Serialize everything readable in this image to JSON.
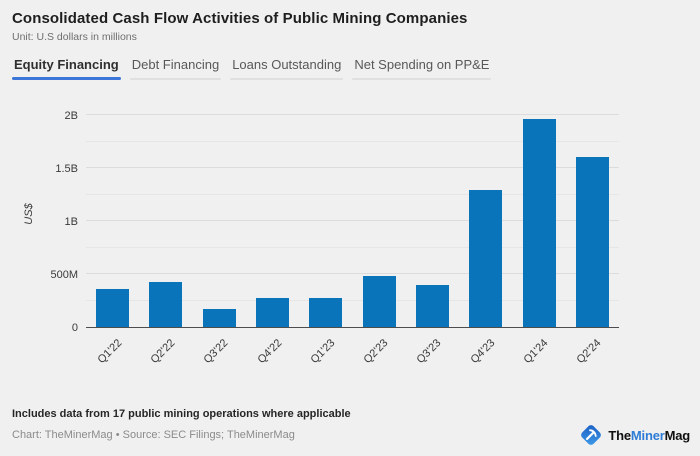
{
  "header": {
    "title": "Consolidated Cash Flow Activities of Public Mining Companies",
    "subtitle": "Unit: U.S dollars in millions"
  },
  "tabs": [
    {
      "label": "Equity Financing",
      "active": true
    },
    {
      "label": "Debt Financing",
      "active": false
    },
    {
      "label": "Loans Outstanding",
      "active": false
    },
    {
      "label": "Net Spending on PP&E",
      "active": false
    }
  ],
  "chart_data": {
    "type": "bar",
    "title": "Equity Financing",
    "unit": "U.S dollars in millions",
    "categories": [
      "Q1'22",
      "Q2'22",
      "Q3'22",
      "Q4'22",
      "Q1'23",
      "Q2'23",
      "Q3'23",
      "Q4'23",
      "Q1'24",
      "Q2'24"
    ],
    "values": [
      360,
      425,
      170,
      270,
      275,
      485,
      395,
      1290,
      1960,
      1600
    ],
    "ylabel": "US$",
    "ylim": [
      0,
      2000
    ],
    "yticks": [
      {
        "value": 0,
        "label": "0"
      },
      {
        "value": 500,
        "label": "500M"
      },
      {
        "value": 1000,
        "label": "1B"
      },
      {
        "value": 1500,
        "label": "1.5B"
      },
      {
        "value": 2000,
        "label": "2B"
      }
    ],
    "gridline_step_millions": 250,
    "grid": true,
    "legend": false,
    "bar_color": "#0a74ba"
  },
  "footer": {
    "note": "Includes data from 17 public mining operations where applicable",
    "credit": "Chart: TheMinerMag • Source: SEC Filings; TheMinerMag",
    "logo": {
      "part1": "The",
      "part2": "Miner",
      "part3": "Mag",
      "icon": "pickaxe-diamond-icon"
    }
  },
  "colors": {
    "background": "#f0f0f0",
    "bar": "#0a74ba",
    "tab_accent": "#3b76d8",
    "axis_line": "#4d4d4d",
    "gridline": "#dcdcdc",
    "logo_blue": "#2e7cd6"
  }
}
